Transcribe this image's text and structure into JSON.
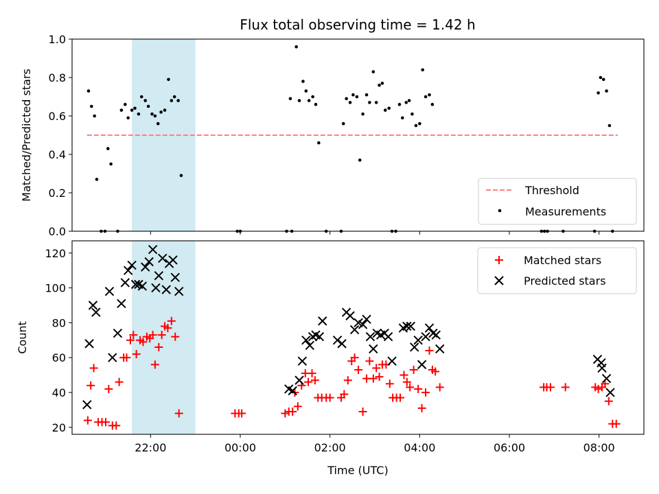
{
  "title": "Flux total observing time = 1.42 h",
  "colors": {
    "measurement": "#000000",
    "threshold": "#ff7f7f",
    "matched": "#ff0000",
    "predicted": "#000000",
    "shade": "#add8e6"
  },
  "chart_data": [
    {
      "type": "scatter",
      "ylabel": "Matched/Predicted stars",
      "ylim": [
        0,
        1
      ],
      "xlim": [
        "20:15",
        "09:00"
      ],
      "y_ticks": [
        "0.0",
        "0.2",
        "0.4",
        "0.6",
        "0.8",
        "1.0"
      ],
      "shaded_span": [
        "21:35",
        "23:00"
      ],
      "threshold": {
        "name": "Threshold",
        "value": 0.5,
        "x_range": [
          "20:35",
          "08:25"
        ]
      },
      "legend": {
        "placement": "lower-right",
        "entries": [
          "Threshold",
          "Measurements"
        ]
      },
      "series": [
        {
          "name": "Measurements",
          "points": [
            [
              "20:37",
              0.73
            ],
            [
              "20:41",
              0.65
            ],
            [
              "20:45",
              0.6
            ],
            [
              "20:48",
              0.27
            ],
            [
              "20:54",
              0.0
            ],
            [
              "20:59",
              0.0
            ],
            [
              "21:03",
              0.43
            ],
            [
              "21:07",
              0.35
            ],
            [
              "21:16",
              0.0
            ],
            [
              "21:21",
              0.63
            ],
            [
              "21:26",
              0.66
            ],
            [
              "21:30",
              0.59
            ],
            [
              "21:35",
              0.63
            ],
            [
              "21:39",
              0.64
            ],
            [
              "21:44",
              0.61
            ],
            [
              "21:48",
              0.7
            ],
            [
              "21:53",
              0.68
            ],
            [
              "21:57",
              0.65
            ],
            [
              "22:02",
              0.61
            ],
            [
              "22:06",
              0.6
            ],
            [
              "22:10",
              0.56
            ],
            [
              "22:14",
              0.62
            ],
            [
              "22:19",
              0.63
            ],
            [
              "22:24",
              0.79
            ],
            [
              "22:28",
              0.68
            ],
            [
              "22:32",
              0.7
            ],
            [
              "22:37",
              0.68
            ],
            [
              "22:41",
              0.29
            ],
            [
              "23:56",
              0.0
            ],
            [
              "24:00",
              0.0
            ],
            [
              "25:02",
              0.0
            ],
            [
              "25:09",
              0.0
            ],
            [
              "25:07",
              0.69
            ],
            [
              "25:15",
              0.96
            ],
            [
              "25:19",
              0.68
            ],
            [
              "25:24",
              0.78
            ],
            [
              "25:28",
              0.73
            ],
            [
              "25:32",
              0.68
            ],
            [
              "25:37",
              0.7
            ],
            [
              "25:41",
              0.66
            ],
            [
              "25:45",
              0.46
            ],
            [
              "25:55",
              0.0
            ],
            [
              "26:15",
              0.0
            ],
            [
              "26:18",
              0.56
            ],
            [
              "26:22",
              0.69
            ],
            [
              "26:27",
              0.67
            ],
            [
              "26:31",
              0.71
            ],
            [
              "26:36",
              0.7
            ],
            [
              "26:40",
              0.37
            ],
            [
              "26:44",
              0.61
            ],
            [
              "26:49",
              0.71
            ],
            [
              "26:53",
              0.67
            ],
            [
              "26:58",
              0.83
            ],
            [
              "27:02",
              0.67
            ],
            [
              "27:06",
              0.76
            ],
            [
              "27:10",
              0.77
            ],
            [
              "27:14",
              0.63
            ],
            [
              "27:19",
              0.64
            ],
            [
              "27:23",
              0.0
            ],
            [
              "27:28",
              0.0
            ],
            [
              "27:33",
              0.66
            ],
            [
              "27:37",
              0.59
            ],
            [
              "27:42",
              0.67
            ],
            [
              "27:46",
              0.68
            ],
            [
              "27:50",
              0.61
            ],
            [
              "27:55",
              0.55
            ],
            [
              "28:00",
              0.56
            ],
            [
              "28:04",
              0.84
            ],
            [
              "28:08",
              0.7
            ],
            [
              "28:13",
              0.71
            ],
            [
              "28:17",
              0.66
            ],
            [
              "30:43",
              0.0
            ],
            [
              "30:47",
              0.0
            ],
            [
              "30:51",
              0.0
            ],
            [
              "31:12",
              0.0
            ],
            [
              "31:54",
              0.0
            ],
            [
              "31:59",
              0.72
            ],
            [
              "32:02",
              0.8
            ],
            [
              "32:06",
              0.79
            ],
            [
              "32:10",
              0.73
            ],
            [
              "32:14",
              0.55
            ],
            [
              "32:18",
              0.0
            ]
          ]
        }
      ]
    },
    {
      "type": "scatter",
      "xlabel": "Time (UTC)",
      "ylabel": "Count",
      "ylim": [
        16,
        127
      ],
      "xlim": [
        "20:15",
        "09:00"
      ],
      "x_ticks": [
        "22:00",
        "00:00",
        "02:00",
        "04:00",
        "06:00",
        "08:00"
      ],
      "y_ticks": [
        "20",
        "40",
        "60",
        "80",
        "100",
        "120"
      ],
      "shaded_span": [
        "21:35",
        "23:00"
      ],
      "legend": {
        "placement": "upper-right",
        "entries": [
          "Matched stars",
          "Predicted stars"
        ]
      },
      "series": [
        {
          "name": "Matched stars",
          "marker": "+",
          "points": [
            [
              "20:36",
              24
            ],
            [
              "20:40",
              44
            ],
            [
              "20:44",
              54
            ],
            [
              "20:50",
              23
            ],
            [
              "20:55",
              23
            ],
            [
              "21:00",
              23
            ],
            [
              "21:04",
              42
            ],
            [
              "21:09",
              21
            ],
            [
              "21:14",
              21
            ],
            [
              "21:18",
              46
            ],
            [
              "21:24",
              60
            ],
            [
              "21:28",
              60
            ],
            [
              "21:33",
              70
            ],
            [
              "21:37",
              73
            ],
            [
              "21:41",
              62
            ],
            [
              "21:46",
              70
            ],
            [
              "21:50",
              69
            ],
            [
              "21:55",
              72
            ],
            [
              "21:59",
              71
            ],
            [
              "22:03",
              73
            ],
            [
              "22:06",
              56
            ],
            [
              "22:11",
              66
            ],
            [
              "22:15",
              73
            ],
            [
              "22:19",
              78
            ],
            [
              "22:23",
              77
            ],
            [
              "22:28",
              81
            ],
            [
              "22:33",
              72
            ],
            [
              "22:38",
              28
            ],
            [
              "23:53",
              28
            ],
            [
              "23:58",
              28
            ],
            [
              "24:02",
              28
            ],
            [
              "25:00",
              28
            ],
            [
              "25:05",
              29
            ],
            [
              "25:10",
              29
            ],
            [
              "25:13",
              40
            ],
            [
              "25:17",
              32
            ],
            [
              "25:22",
              44
            ],
            [
              "25:27",
              51
            ],
            [
              "25:31",
              46
            ],
            [
              "25:36",
              51
            ],
            [
              "25:40",
              47
            ],
            [
              "25:44",
              37
            ],
            [
              "25:49",
              37
            ],
            [
              "25:55",
              37
            ],
            [
              "26:00",
              37
            ],
            [
              "26:15",
              37
            ],
            [
              "26:19",
              39
            ],
            [
              "26:24",
              47
            ],
            [
              "26:29",
              58
            ],
            [
              "26:33",
              60
            ],
            [
              "26:38",
              53
            ],
            [
              "26:44",
              29
            ],
            [
              "26:49",
              48
            ],
            [
              "26:53",
              58
            ],
            [
              "26:58",
              48
            ],
            [
              "27:02",
              54
            ],
            [
              "27:06",
              49
            ],
            [
              "27:10",
              56
            ],
            [
              "27:15",
              56
            ],
            [
              "27:20",
              45
            ],
            [
              "27:24",
              37
            ],
            [
              "27:29",
              37
            ],
            [
              "27:34",
              37
            ],
            [
              "27:39",
              50
            ],
            [
              "27:43",
              46
            ],
            [
              "27:47",
              43
            ],
            [
              "27:52",
              53
            ],
            [
              "27:58",
              42
            ],
            [
              "28:03",
              31
            ],
            [
              "28:08",
              40
            ],
            [
              "28:13",
              64
            ],
            [
              "28:17",
              53
            ],
            [
              "28:21",
              52
            ],
            [
              "28:27",
              43
            ],
            [
              "30:46",
              43
            ],
            [
              "30:50",
              43
            ],
            [
              "30:55",
              43
            ],
            [
              "31:15",
              43
            ],
            [
              "31:55",
              43
            ],
            [
              "31:59",
              42
            ],
            [
              "32:04",
              43
            ],
            [
              "32:08",
              45
            ],
            [
              "32:13",
              35
            ],
            [
              "32:18",
              22
            ],
            [
              "32:23",
              22
            ]
          ]
        },
        {
          "name": "Predicted stars",
          "marker": "x",
          "points": [
            [
              "20:35",
              33
            ],
            [
              "20:38",
              68
            ],
            [
              "20:43",
              90
            ],
            [
              "20:47",
              86
            ],
            [
              "21:05",
              98
            ],
            [
              "21:09",
              60
            ],
            [
              "21:16",
              74
            ],
            [
              "21:21",
              91
            ],
            [
              "21:26",
              103
            ],
            [
              "21:30",
              110
            ],
            [
              "21:35",
              113
            ],
            [
              "21:40",
              102
            ],
            [
              "21:44",
              102
            ],
            [
              "21:49",
              101
            ],
            [
              "21:53",
              112
            ],
            [
              "21:58",
              115
            ],
            [
              "22:03",
              122
            ],
            [
              "22:07",
              100
            ],
            [
              "22:11",
              107
            ],
            [
              "22:16",
              117
            ],
            [
              "22:21",
              99
            ],
            [
              "22:25",
              114
            ],
            [
              "22:30",
              116
            ],
            [
              "22:33",
              106
            ],
            [
              "22:38",
              98
            ],
            [
              "25:05",
              42
            ],
            [
              "25:10",
              41
            ],
            [
              "25:19",
              47
            ],
            [
              "25:23",
              58
            ],
            [
              "25:28",
              70
            ],
            [
              "25:33",
              67
            ],
            [
              "25:37",
              72
            ],
            [
              "25:41",
              73
            ],
            [
              "25:46",
              72
            ],
            [
              "25:50",
              81
            ],
            [
              "26:10",
              70
            ],
            [
              "26:16",
              68
            ],
            [
              "26:22",
              86
            ],
            [
              "26:27",
              84
            ],
            [
              "26:33",
              76
            ],
            [
              "26:38",
              80
            ],
            [
              "26:44",
              79
            ],
            [
              "26:49",
              82
            ],
            [
              "26:54",
              72
            ],
            [
              "26:58",
              65
            ],
            [
              "27:03",
              74
            ],
            [
              "27:08",
              73
            ],
            [
              "27:13",
              74
            ],
            [
              "27:18",
              72
            ],
            [
              "27:23",
              58
            ],
            [
              "27:38",
              77
            ],
            [
              "27:43",
              78
            ],
            [
              "27:48",
              78
            ],
            [
              "27:53",
              66
            ],
            [
              "27:58",
              70
            ],
            [
              "28:03",
              56
            ],
            [
              "28:08",
              72
            ],
            [
              "28:13",
              77
            ],
            [
              "28:18",
              74
            ],
            [
              "28:22",
              73
            ],
            [
              "28:27",
              65
            ],
            [
              "31:58",
              59
            ],
            [
              "32:03",
              57
            ],
            [
              "32:04",
              54
            ],
            [
              "32:10",
              48
            ],
            [
              "32:15",
              40
            ]
          ]
        }
      ]
    }
  ]
}
